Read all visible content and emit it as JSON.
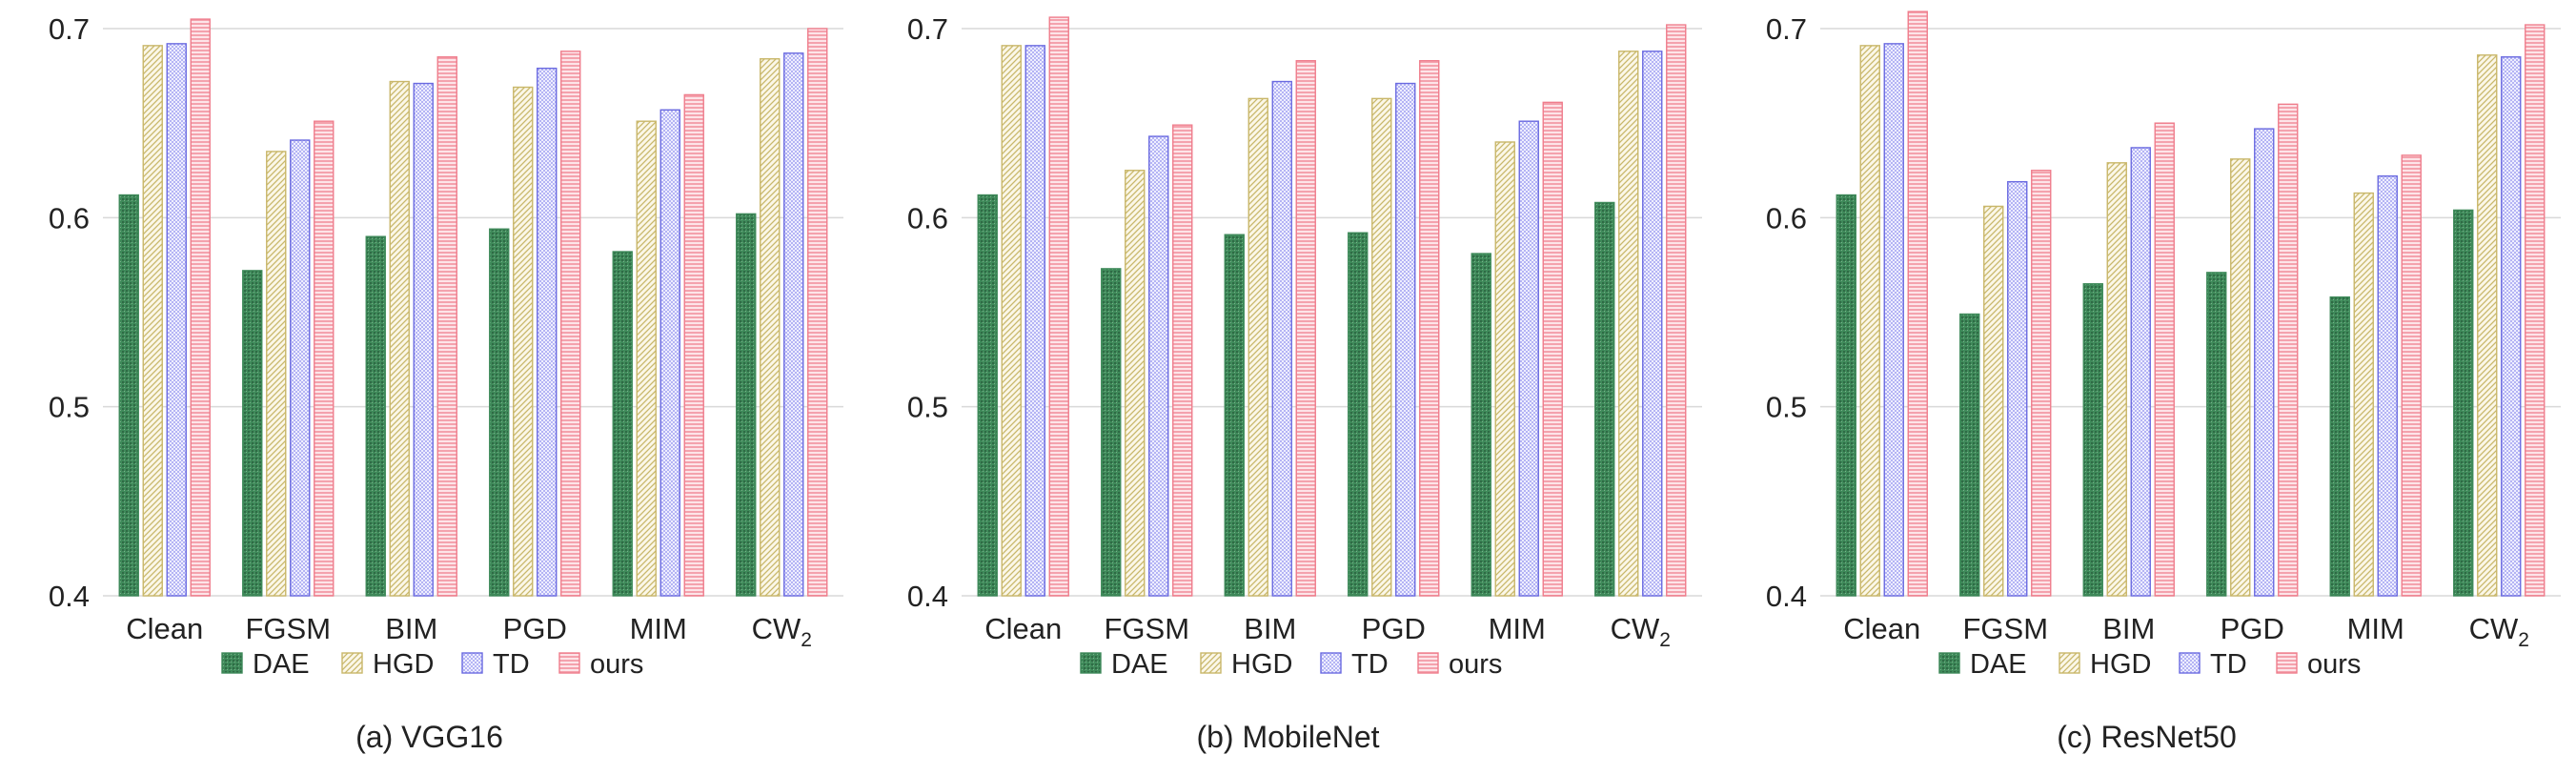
{
  "colors": {
    "DAE": "#3f8a5a",
    "HGD": "#c9b76a",
    "TD": "#6a6ae0",
    "ours": "#ef7d8c"
  },
  "chart_data": [
    {
      "type": "bar",
      "caption": "(a) VGG16",
      "categories": [
        "Clean",
        "FGSM",
        "BIM",
        "PGD",
        "MIM",
        "CW2"
      ],
      "category_labels": [
        {
          "main": "Clean",
          "sub": ""
        },
        {
          "main": "FGSM",
          "sub": ""
        },
        {
          "main": "BIM",
          "sub": ""
        },
        {
          "main": "PGD",
          "sub": ""
        },
        {
          "main": "MIM",
          "sub": ""
        },
        {
          "main": "CW",
          "sub": "2"
        }
      ],
      "ylim": [
        0.4,
        0.7
      ],
      "yticks": [
        "0.4",
        "0.5",
        "0.6",
        "0.7"
      ],
      "ytick_values": [
        0.4,
        0.5,
        0.6,
        0.7
      ],
      "series": [
        {
          "name": "DAE",
          "values": [
            0.612,
            0.572,
            0.59,
            0.594,
            0.582,
            0.602
          ]
        },
        {
          "name": "HGD",
          "values": [
            0.691,
            0.635,
            0.672,
            0.669,
            0.651,
            0.684
          ]
        },
        {
          "name": "TD",
          "values": [
            0.692,
            0.641,
            0.671,
            0.679,
            0.657,
            0.687
          ]
        },
        {
          "name": "ours",
          "values": [
            0.705,
            0.651,
            0.685,
            0.688,
            0.665,
            0.7
          ]
        }
      ],
      "legend": "bottom"
    },
    {
      "type": "bar",
      "caption": "(b) MobileNet",
      "categories": [
        "Clean",
        "FGSM",
        "BIM",
        "PGD",
        "MIM",
        "CW2"
      ],
      "category_labels": [
        {
          "main": "Clean",
          "sub": ""
        },
        {
          "main": "FGSM",
          "sub": ""
        },
        {
          "main": "BIM",
          "sub": ""
        },
        {
          "main": "PGD",
          "sub": ""
        },
        {
          "main": "MIM",
          "sub": ""
        },
        {
          "main": "CW",
          "sub": "2"
        }
      ],
      "ylim": [
        0.4,
        0.7
      ],
      "yticks": [
        "0.4",
        "0.5",
        "0.6",
        "0.7"
      ],
      "ytick_values": [
        0.4,
        0.5,
        0.6,
        0.7
      ],
      "series": [
        {
          "name": "DAE",
          "values": [
            0.612,
            0.573,
            0.591,
            0.592,
            0.581,
            0.608
          ]
        },
        {
          "name": "HGD",
          "values": [
            0.691,
            0.625,
            0.663,
            0.663,
            0.64,
            0.688
          ]
        },
        {
          "name": "TD",
          "values": [
            0.691,
            0.643,
            0.672,
            0.671,
            0.651,
            0.688
          ]
        },
        {
          "name": "ours",
          "values": [
            0.706,
            0.649,
            0.683,
            0.683,
            0.661,
            0.702
          ]
        }
      ],
      "legend": "bottom"
    },
    {
      "type": "bar",
      "caption": "(c) ResNet50",
      "categories": [
        "Clean",
        "FGSM",
        "BIM",
        "PGD",
        "MIM",
        "CW2"
      ],
      "category_labels": [
        {
          "main": "Clean",
          "sub": ""
        },
        {
          "main": "FGSM",
          "sub": ""
        },
        {
          "main": "BIM",
          "sub": ""
        },
        {
          "main": "PGD",
          "sub": ""
        },
        {
          "main": "MIM",
          "sub": ""
        },
        {
          "main": "CW",
          "sub": "2"
        }
      ],
      "ylim": [
        0.4,
        0.7
      ],
      "yticks": [
        "0.4",
        "0.5",
        "0.6",
        "0.7"
      ],
      "ytick_values": [
        0.4,
        0.5,
        0.6,
        0.7
      ],
      "series": [
        {
          "name": "DAE",
          "values": [
            0.612,
            0.549,
            0.565,
            0.571,
            0.558,
            0.604
          ]
        },
        {
          "name": "HGD",
          "values": [
            0.691,
            0.606,
            0.629,
            0.631,
            0.613,
            0.686
          ]
        },
        {
          "name": "TD",
          "values": [
            0.692,
            0.619,
            0.637,
            0.647,
            0.622,
            0.685
          ]
        },
        {
          "name": "ours",
          "values": [
            0.709,
            0.625,
            0.65,
            0.66,
            0.633,
            0.702
          ]
        }
      ],
      "legend": "bottom"
    }
  ]
}
